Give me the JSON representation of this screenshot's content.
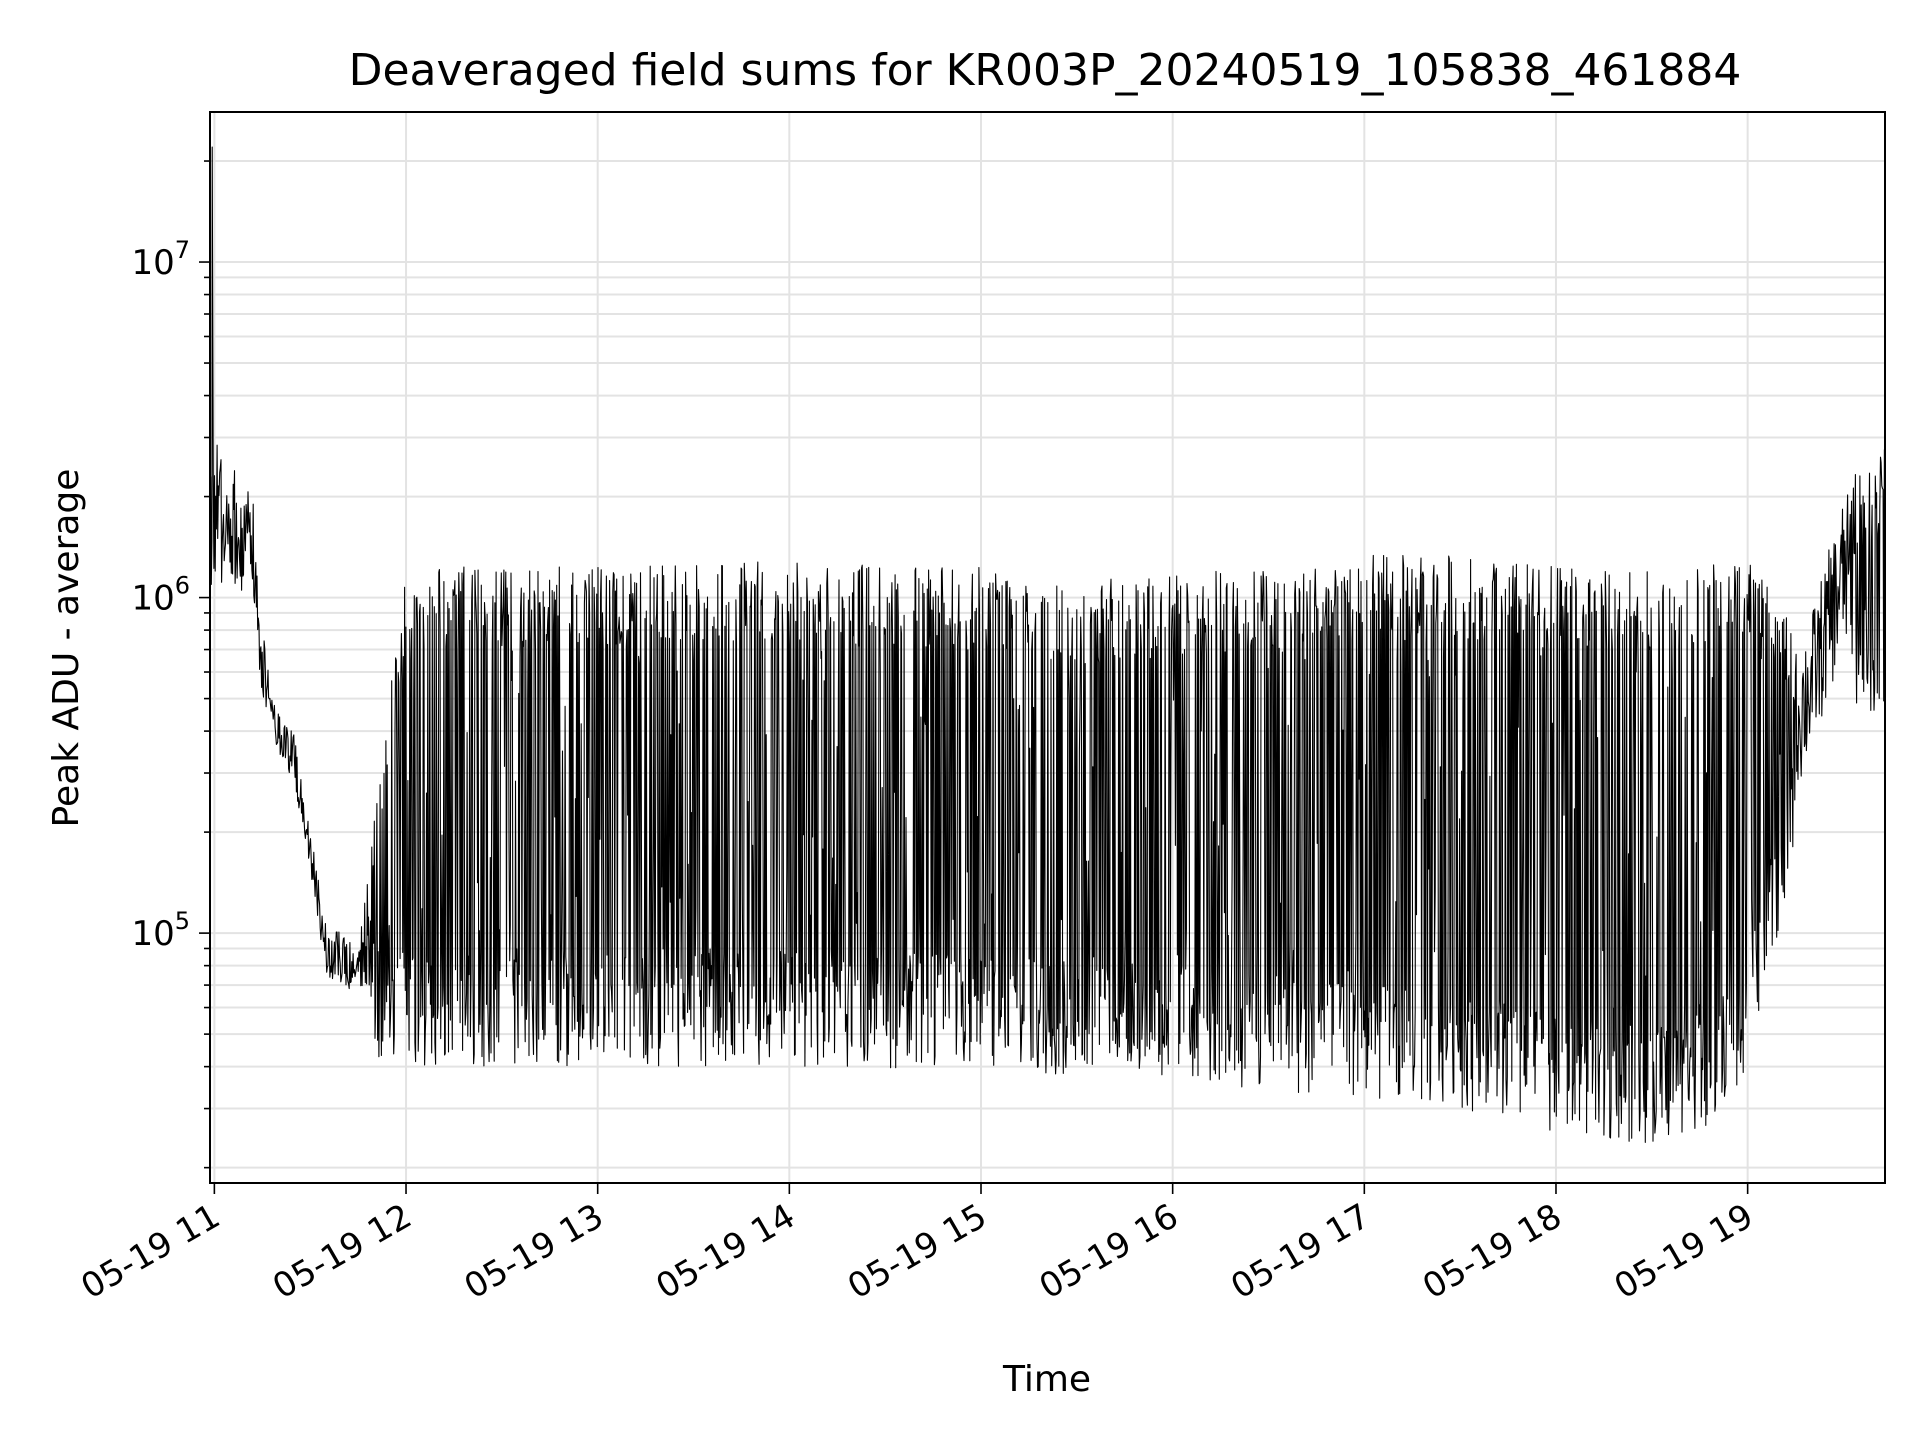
{
  "chart_data": {
    "type": "line",
    "title": "Deaveraged field sums for KR003P_20240519_105838_461884",
    "xlabel": "Time",
    "ylabel": "Peak ADU - average",
    "yscale": "log",
    "ylim": [
      18000,
      28000000
    ],
    "xlim": [
      "2024-05-19 10:58:38",
      "2024-05-19 19:43:00"
    ],
    "grid": true,
    "line_color": "#000000",
    "x_ticks": [
      {
        "label": "05-19 11",
        "time": "2024-05-19 11:00"
      },
      {
        "label": "05-19 12",
        "time": "2024-05-19 12:00"
      },
      {
        "label": "05-19 13",
        "time": "2024-05-19 13:00"
      },
      {
        "label": "05-19 14",
        "time": "2024-05-19 14:00"
      },
      {
        "label": "05-19 15",
        "time": "2024-05-19 15:00"
      },
      {
        "label": "05-19 16",
        "time": "2024-05-19 16:00"
      },
      {
        "label": "05-19 17",
        "time": "2024-05-19 17:00"
      },
      {
        "label": "05-19 18",
        "time": "2024-05-19 18:00"
      },
      {
        "label": "05-19 19",
        "time": "2024-05-19 19:00"
      }
    ],
    "y_ticks": [
      {
        "mantissa": "10",
        "exponent": "5",
        "value": 100000
      },
      {
        "mantissa": "10",
        "exponent": "6",
        "value": 1000000
      },
      {
        "mantissa": "10",
        "exponent": "7",
        "value": 10000000
      }
    ],
    "envelope": {
      "time": [
        "2024-05-19 10:58:38",
        "2024-05-19 11:00",
        "2024-05-19 11:12",
        "2024-05-19 11:15",
        "2024-05-19 11:20",
        "2024-05-19 11:25",
        "2024-05-19 11:30",
        "2024-05-19 11:35",
        "2024-05-19 11:45",
        "2024-05-19 12:00",
        "2024-05-19 13:00",
        "2024-05-19 14:00",
        "2024-05-19 15:00",
        "2024-05-19 15:30",
        "2024-05-19 16:00",
        "2024-05-19 16:30",
        "2024-05-19 17:00",
        "2024-05-19 17:30",
        "2024-05-19 18:00",
        "2024-05-19 18:30",
        "2024-05-19 18:50",
        "2024-05-19 19:00",
        "2024-05-19 19:15",
        "2024-05-19 19:20",
        "2024-05-19 19:30",
        "2024-05-19 19:43"
      ],
      "low": [
        1000000,
        1100000,
        1000000,
        500000,
        350000,
        280000,
        150000,
        75000,
        65000,
        60000,
        60000,
        60000,
        58000,
        55000,
        55000,
        50000,
        48000,
        45000,
        38000,
        35000,
        40000,
        60000,
        250000,
        350000,
        700000,
        650000
      ],
      "high": [
        2500000,
        3000000,
        2000000,
        800000,
        450000,
        400000,
        200000,
        110000,
        90000,
        1100000,
        1100000,
        1150000,
        1100000,
        1000000,
        1050000,
        1100000,
        1200000,
        1200000,
        1100000,
        1100000,
        1150000,
        1200000,
        700000,
        900000,
        2000000,
        2500000
      ]
    },
    "peak_value": 22000000,
    "peak_time": "2024-05-19 10:59:20",
    "min_value": 25000,
    "min_time": "2024-05-19 18:15"
  }
}
